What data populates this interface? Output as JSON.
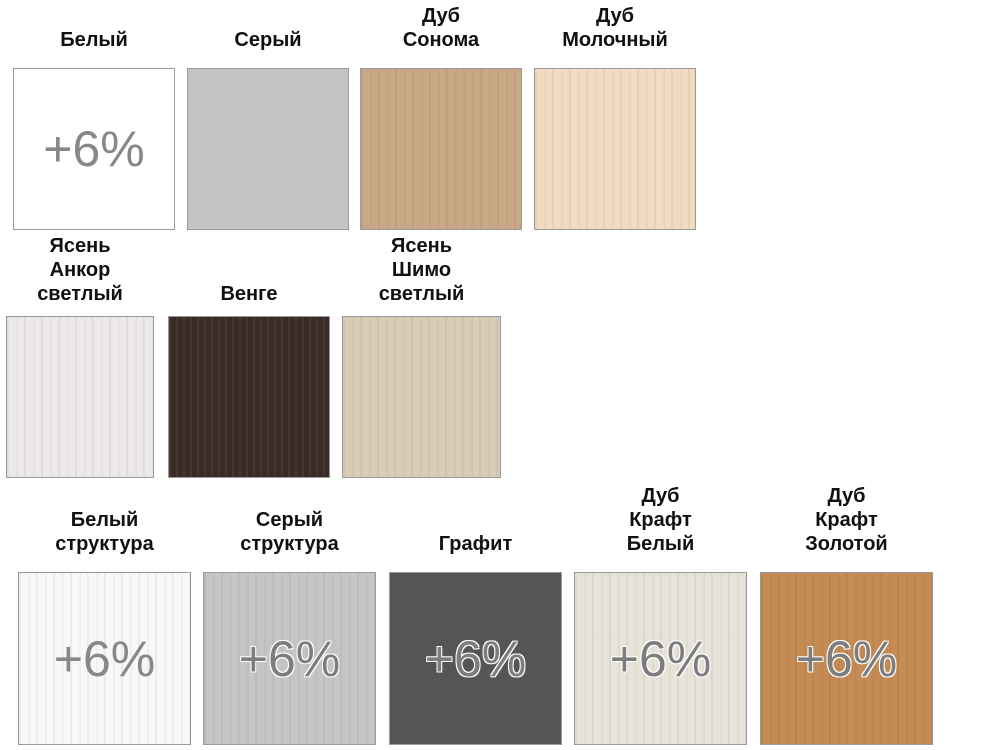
{
  "swatches": [
    {
      "name_lines": [
        "Белый"
      ],
      "color": "#ffffff",
      "badge": "+6%"
    },
    {
      "name_lines": [
        "Серый"
      ],
      "color": "#c3c3c3",
      "badge": ""
    },
    {
      "name_lines": [
        "Дуб",
        "Сонома"
      ],
      "color": "#c9a886",
      "badge": ""
    },
    {
      "name_lines": [
        "Дуб",
        "Молочный"
      ],
      "color": "#f3dbc2",
      "badge": ""
    },
    {
      "name_lines": [
        "Ясень",
        "Анкор",
        "светлый"
      ],
      "color": "#ece9e8",
      "badge": ""
    },
    {
      "name_lines": [
        "Венге"
      ],
      "color": "#3b2b26",
      "badge": ""
    },
    {
      "name_lines": [
        "Ясень",
        "Шимо",
        "светлый"
      ],
      "color": "#d8cbb8",
      "badge": ""
    },
    {
      "name_lines": [
        "Белый",
        "структура"
      ],
      "color": "#f8f8f8",
      "badge": "+6%"
    },
    {
      "name_lines": [
        "Серый",
        "структура"
      ],
      "color": "#c5c5c5",
      "badge": "+6%"
    },
    {
      "name_lines": [
        "Графит"
      ],
      "color": "#555555",
      "badge": "+6%"
    },
    {
      "name_lines": [
        "Дуб",
        "Крафт",
        "Белый"
      ],
      "color": "#e8e3d8",
      "badge": "+6%"
    },
    {
      "name_lines": [
        "Дуб",
        "Крафт",
        "Золотой"
      ],
      "color": "#c48b55",
      "badge": "+6%"
    }
  ]
}
